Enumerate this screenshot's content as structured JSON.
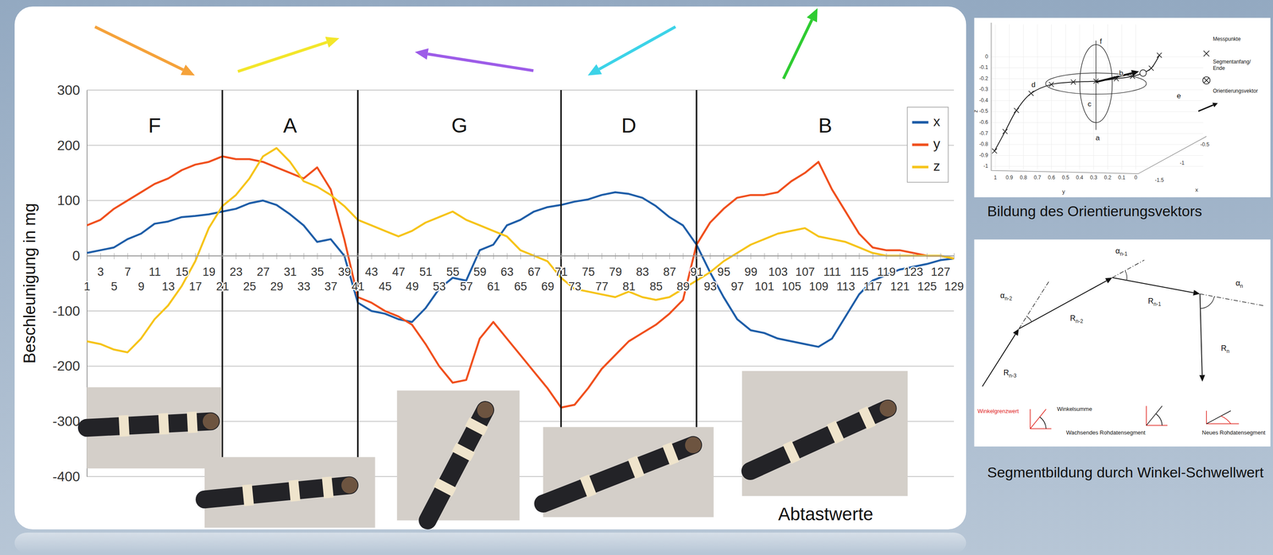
{
  "chart_data": {
    "type": "line",
    "y_label": "Beschleunigung in mg",
    "x_label": "Abtastwerte",
    "x": [
      1,
      3,
      5,
      7,
      9,
      11,
      13,
      15,
      17,
      19,
      21,
      23,
      25,
      27,
      29,
      31,
      33,
      35,
      37,
      39,
      41,
      43,
      45,
      47,
      49,
      51,
      53,
      55,
      57,
      59,
      61,
      63,
      65,
      67,
      69,
      71,
      73,
      75,
      77,
      79,
      81,
      83,
      85,
      87,
      89,
      91,
      93,
      95,
      97,
      99,
      101,
      103,
      105,
      107,
      109,
      111,
      113,
      115,
      117,
      119,
      121,
      123,
      125,
      127,
      129
    ],
    "series": [
      {
        "name": "x",
        "color": "#1f5ea8",
        "values": [
          5,
          10,
          15,
          30,
          40,
          58,
          62,
          70,
          72,
          75,
          80,
          85,
          95,
          100,
          92,
          75,
          55,
          25,
          30,
          0,
          -85,
          -100,
          -105,
          -115,
          -120,
          -95,
          -60,
          -40,
          -45,
          10,
          20,
          55,
          65,
          80,
          88,
          92,
          98,
          102,
          110,
          115,
          112,
          105,
          90,
          70,
          55,
          20,
          -30,
          -75,
          -115,
          -135,
          -140,
          -150,
          -155,
          -160,
          -165,
          -150,
          -110,
          -70,
          -45,
          -35,
          -25,
          -20,
          -15,
          -8,
          -5
        ]
      },
      {
        "name": "y",
        "color": "#f0501e",
        "values": [
          55,
          65,
          85,
          100,
          115,
          130,
          140,
          155,
          165,
          170,
          180,
          175,
          175,
          170,
          160,
          150,
          140,
          160,
          120,
          30,
          -75,
          -85,
          -100,
          -110,
          -125,
          -160,
          -200,
          -230,
          -225,
          -150,
          -120,
          -150,
          -180,
          -210,
          -240,
          -275,
          -270,
          -240,
          -205,
          -180,
          -155,
          -140,
          -125,
          -105,
          -80,
          20,
          60,
          85,
          105,
          110,
          110,
          115,
          135,
          150,
          170,
          120,
          80,
          40,
          15,
          10,
          10,
          5,
          0,
          0,
          -5
        ]
      },
      {
        "name": "z",
        "color": "#f6c41a",
        "values": [
          -155,
          -160,
          -170,
          -175,
          -150,
          -115,
          -90,
          -55,
          -10,
          50,
          90,
          110,
          140,
          180,
          195,
          170,
          135,
          125,
          110,
          90,
          65,
          55,
          45,
          35,
          45,
          60,
          70,
          80,
          65,
          55,
          45,
          35,
          10,
          0,
          -10,
          -40,
          -60,
          -65,
          -70,
          -75,
          -65,
          -75,
          -80,
          -75,
          -60,
          -45,
          -30,
          -10,
          5,
          20,
          30,
          40,
          45,
          50,
          35,
          30,
          25,
          15,
          5,
          0,
          0,
          0,
          0,
          0,
          -5
        ]
      }
    ],
    "xlim": [
      1,
      129
    ],
    "xticks": [
      1,
      3,
      5,
      7,
      9,
      11,
      13,
      15,
      17,
      19,
      21,
      23,
      25,
      27,
      29,
      31,
      33,
      35,
      37,
      39,
      41,
      43,
      45,
      47,
      49,
      51,
      53,
      55,
      57,
      59,
      61,
      63,
      65,
      67,
      69,
      71,
      73,
      75,
      77,
      79,
      81,
      83,
      85,
      87,
      89,
      91,
      93,
      95,
      97,
      99,
      101,
      103,
      105,
      107,
      109,
      111,
      113,
      115,
      117,
      119,
      121,
      123,
      125,
      127,
      129
    ],
    "ylim": [
      -400,
      300
    ],
    "yticks": [
      -400,
      -300,
      -200,
      -100,
      0,
      100,
      200,
      300
    ],
    "grid": true,
    "legend": "top-right",
    "annotations": {
      "boundaries": [
        21,
        41,
        71,
        91
      ],
      "labels": [
        "F",
        "A",
        "G",
        "D",
        "B"
      ]
    }
  },
  "figures": [
    {
      "caption": "Bildung des Orientierungsvektors",
      "axes": {
        "z": {
          "label": "z",
          "ticks": [
            0,
            -0.1,
            -0.2,
            -0.3,
            -0.4,
            -0.5,
            -0.6,
            -0.7,
            -0.8,
            -0.9,
            -1
          ]
        },
        "y": {
          "label": "y",
          "ticks": [
            1,
            0.9,
            0.8,
            0.7,
            0.6,
            0.5,
            0.4,
            0.3,
            0.2,
            0.1,
            0
          ]
        },
        "x": {
          "label": "x",
          "ticks": [
            -0.5,
            -1,
            -1.5
          ]
        }
      },
      "segment_labels": [
        "a",
        "b",
        "c",
        "d",
        "e",
        "f"
      ],
      "key_items": [
        "Messpunkte",
        "Segmentanfang/ Ende",
        "Orientierungsvektor"
      ]
    },
    {
      "caption": "Segmentbildung durch Winkel-Schwellwert",
      "angles": [
        {
          "symbol": "α",
          "sub": "n-2"
        },
        {
          "symbol": "α",
          "sub": "n-1"
        },
        {
          "symbol": "α",
          "sub": "n"
        }
      ],
      "vectors": [
        {
          "symbol": "R",
          "sub": "n-3"
        },
        {
          "symbol": "R",
          "sub": "n-2"
        },
        {
          "symbol": "R",
          "sub": "n-1"
        },
        {
          "symbol": "R",
          "sub": "n"
        }
      ],
      "key_items": {
        "threshold": "Winkelgrenzwert",
        "sum": "Winkelsumme",
        "growing": "Wachsendes Rohdatensegment",
        "new": "Neues Rohdatensegment"
      }
    }
  ]
}
